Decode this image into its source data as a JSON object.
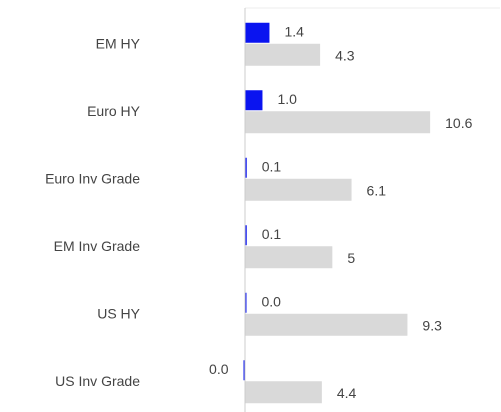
{
  "chart_data": {
    "type": "bar",
    "orientation": "horizontal",
    "categories": [
      "EM HY",
      "Euro HY",
      "Euro Inv Grade",
      "EM Inv Grade",
      "US HY",
      "US Inv Grade"
    ],
    "series": [
      {
        "color": "#0a14f0",
        "values": [
          1.4,
          1.0,
          0.1,
          0.1,
          0.0,
          -0.01
        ],
        "value_labels": [
          "1.4",
          "1.0",
          "0.1",
          "0.1",
          "0.0",
          "0.0"
        ]
      },
      {
        "color": "#d9d9d9",
        "values": [
          4.3,
          10.6,
          6.1,
          5.0,
          9.3,
          4.4
        ]
      }
    ],
    "xlim": [
      0,
      14.6
    ]
  }
}
